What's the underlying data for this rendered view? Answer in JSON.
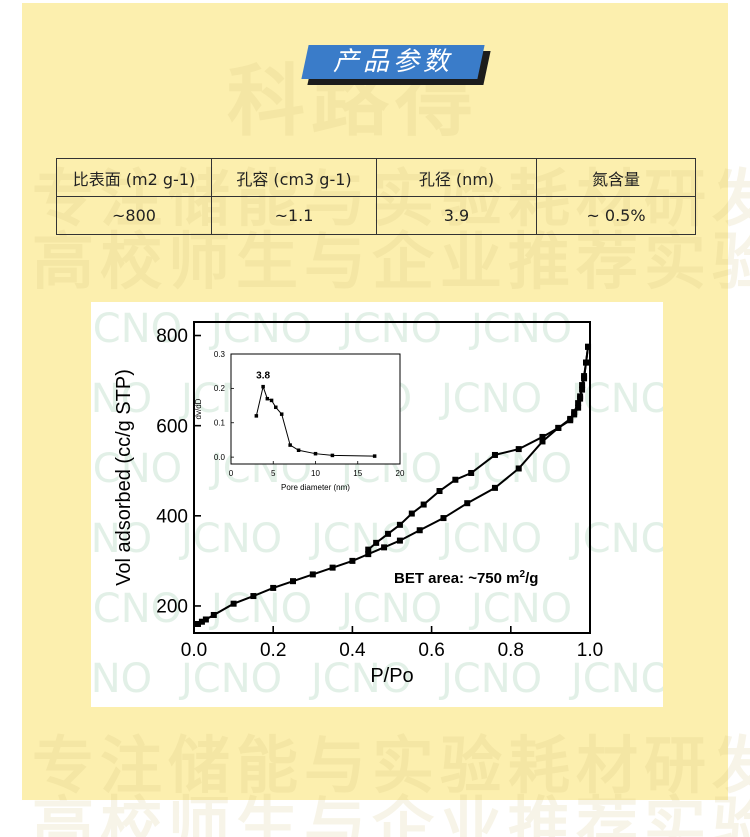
{
  "header": {
    "title": "产品参数"
  },
  "watermarks": {
    "brand": "科路得",
    "line1": "专注储能与实验耗材研发生产",
    "line2": "高校师生与企业推荐实验品牌",
    "chart_text": "JCNO"
  },
  "params_table": {
    "headers": [
      "比表面 (m2 g-1)",
      "孔容 (cm3 g-1)",
      "孔径 (nm)",
      "氮含量"
    ],
    "rows": [
      [
        "~800",
        "~1.1",
        "3.9",
        "~ 0.5%"
      ]
    ]
  },
  "colors": {
    "panel": "#fcefae",
    "banner": "#3a7cc9",
    "series": "#000000"
  },
  "chart_data": [
    {
      "type": "line",
      "xlabel": "P/Po",
      "ylabel": "Vol adsorbed (cc/g STP)",
      "xlim": [
        0.0,
        1.0
      ],
      "ylim": [
        140,
        830
      ],
      "xticks": [
        "0.0",
        "0.2",
        "0.4",
        "0.6",
        "0.8",
        "1.0"
      ],
      "yticks": [
        "200",
        "400",
        "600",
        "800"
      ],
      "annotation": {
        "prefix": "BET area: ~750 m",
        "sup": "2",
        "suffix": "/g"
      },
      "series": [
        {
          "x": [
            0.01,
            0.02,
            0.03,
            0.05,
            0.1,
            0.15,
            0.2,
            0.25,
            0.3,
            0.35,
            0.4,
            0.44,
            0.48,
            0.52,
            0.57,
            0.63,
            0.69,
            0.76,
            0.82,
            0.88,
            0.92,
            0.95,
            0.96,
            0.97,
            0.975,
            0.98,
            0.985,
            0.99,
            0.995
          ],
          "y": [
            160,
            165,
            170,
            180,
            205,
            222,
            240,
            255,
            270,
            285,
            300,
            315,
            330,
            345,
            368,
            395,
            428,
            462,
            505,
            565,
            595,
            612,
            625,
            640,
            660,
            690,
            710,
            740,
            775
          ]
        },
        {
          "x": [
            0.995,
            0.99,
            0.985,
            0.98,
            0.975,
            0.97,
            0.96,
            0.95,
            0.92,
            0.88,
            0.82,
            0.76,
            0.7,
            0.66,
            0.62,
            0.58,
            0.55,
            0.52,
            0.49,
            0.46,
            0.44
          ],
          "y": [
            775,
            740,
            705,
            680,
            665,
            650,
            630,
            615,
            595,
            575,
            548,
            535,
            495,
            480,
            455,
            425,
            405,
            380,
            360,
            340,
            325
          ]
        }
      ]
    },
    {
      "type": "line",
      "xlabel": "Pore diameter (nm)",
      "ylabel": "dv/dD",
      "xlim": [
        0,
        20
      ],
      "ylim": [
        -0.02,
        0.3
      ],
      "xticks": [
        "0",
        "5",
        "10",
        "15",
        "20"
      ],
      "yticks": [
        "0.0",
        "0.1",
        "0.2",
        "0.3"
      ],
      "annotation": "3.8",
      "series": [
        {
          "x": [
            3,
            3.8,
            4.3,
            4.8,
            5.3,
            6,
            7,
            8,
            10,
            12,
            17
          ],
          "y": [
            0.12,
            0.205,
            0.17,
            0.165,
            0.145,
            0.125,
            0.035,
            0.02,
            0.01,
            0.005,
            0.003
          ]
        }
      ]
    }
  ]
}
